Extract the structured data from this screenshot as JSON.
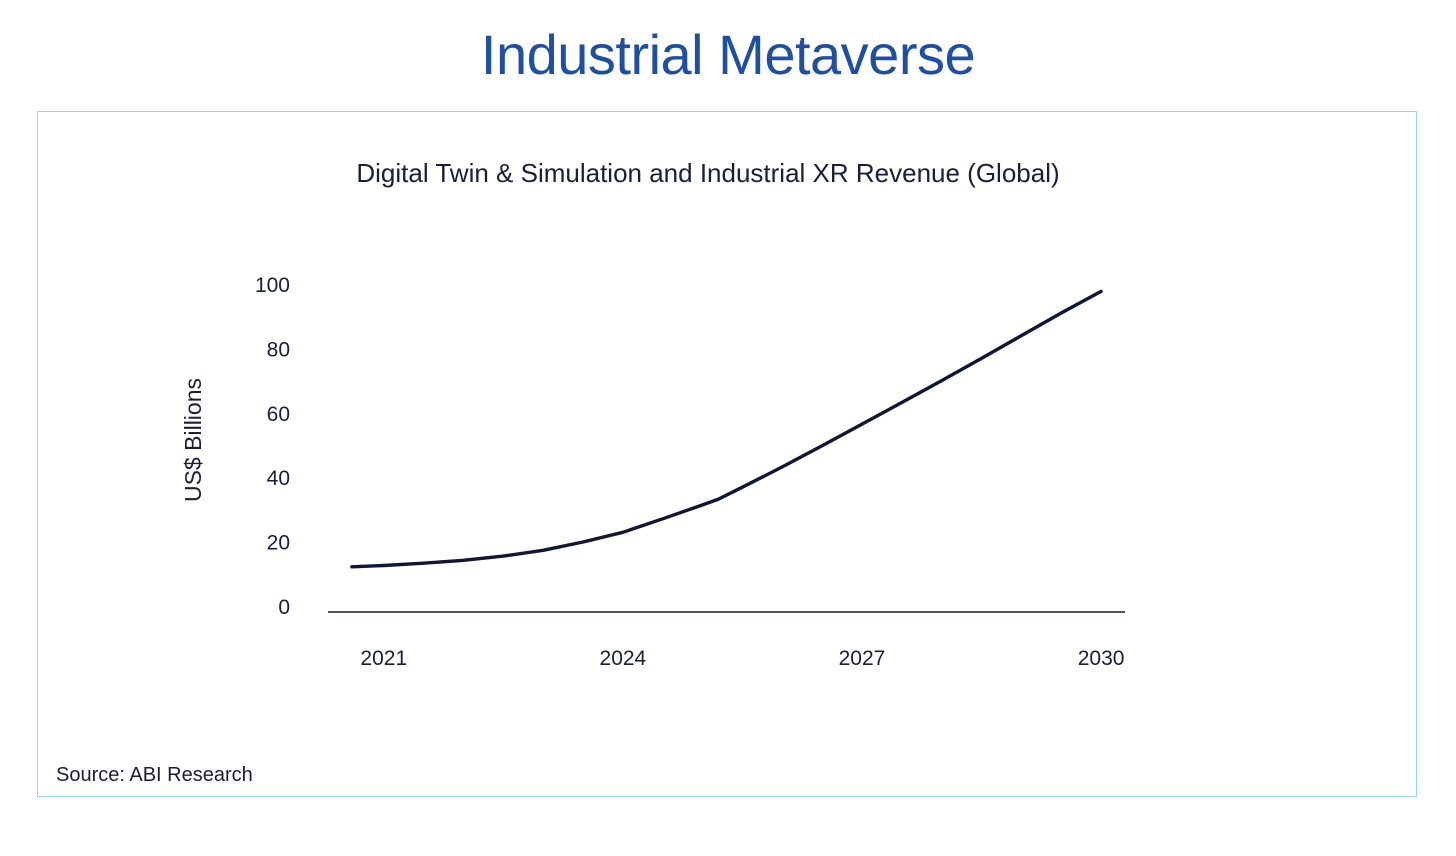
{
  "page": {
    "title": "Industrial Metaverse",
    "source": "Source: ABI Research"
  },
  "colors": {
    "title": "#1f4fa0",
    "panel_border": "#9fd8ee",
    "line": "#111633",
    "text": "#1a1f36"
  },
  "chart_data": {
    "type": "line",
    "title": "Digital Twin & Simulation and Industrial XR Revenue (Global)",
    "xlabel": "",
    "ylabel": "US$ Billions",
    "x_ticks": [
      "2021",
      "2024",
      "2027",
      "2030"
    ],
    "y_ticks": [
      "0",
      "20",
      "40",
      "60",
      "80",
      "100"
    ],
    "xlim": [
      2020.3,
      2030.3
    ],
    "ylim": [
      0,
      100
    ],
    "grid": false,
    "legend": "none",
    "series": [
      {
        "x": [
          2020.6,
          2021.0,
          2021.5,
          2022.0,
          2022.5,
          2023.0,
          2023.5,
          2024.0,
          2024.5,
          2025.0,
          2025.2,
          2025.5,
          2026.0,
          2026.5,
          2027.0,
          2027.5,
          2028.0,
          2028.5,
          2029.0,
          2029.5,
          2030.0
        ],
        "y": [
          12.5,
          12.9,
          13.6,
          14.5,
          15.8,
          17.6,
          20.2,
          23.2,
          27.4,
          31.7,
          33.5,
          37.2,
          43.5,
          50.1,
          56.8,
          63.5,
          70.3,
          77.2,
          84.3,
          91.3,
          98.0
        ]
      }
    ]
  }
}
